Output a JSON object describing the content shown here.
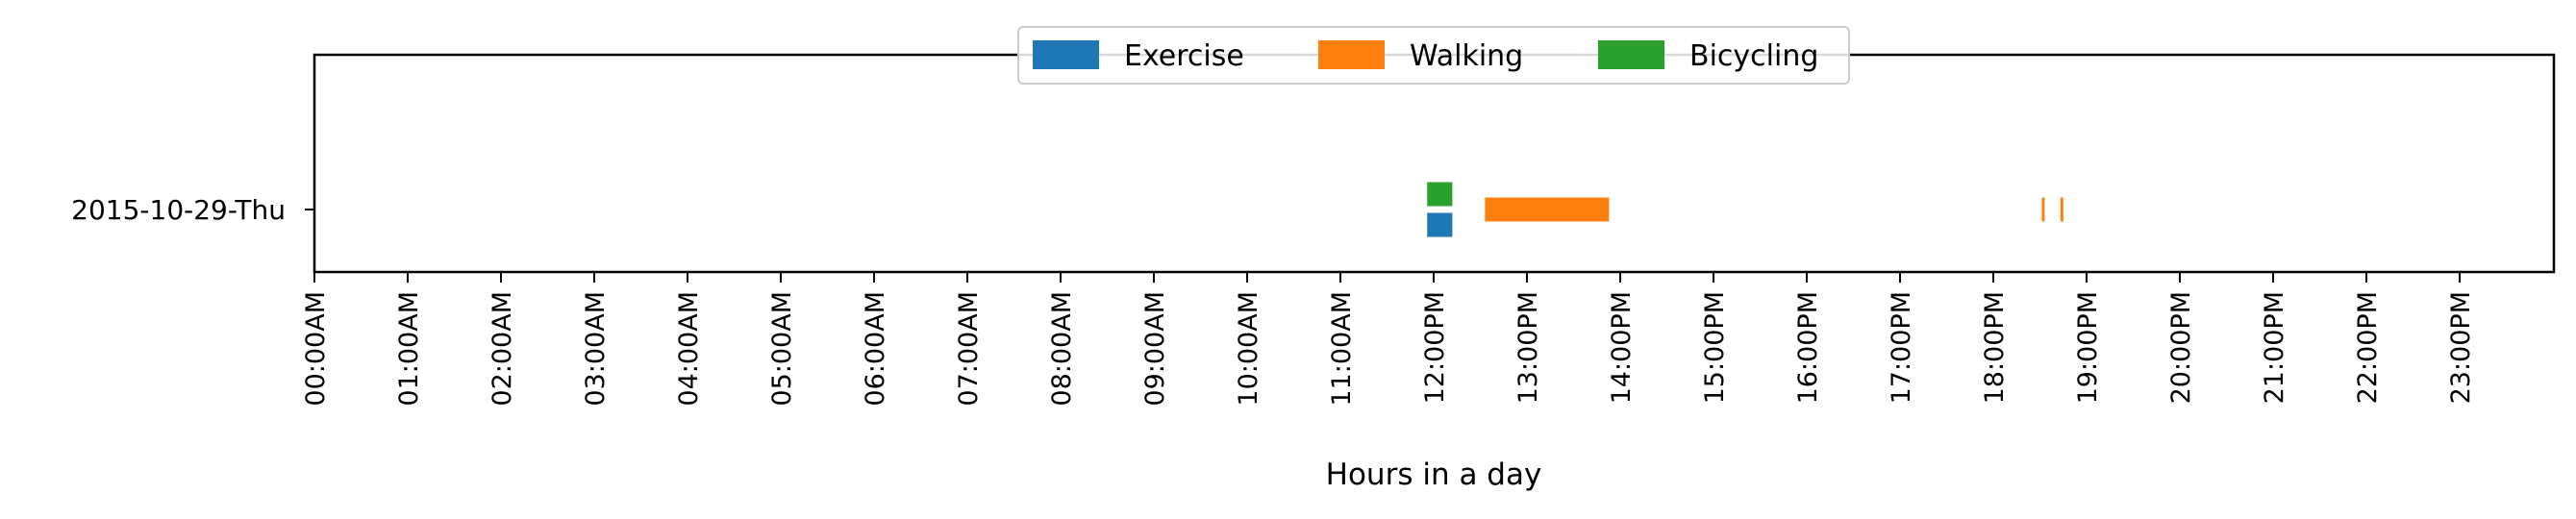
{
  "chart_data": {
    "type": "timeline",
    "xlabel": "Hours in a day",
    "xlim": [
      0,
      24
    ],
    "x_ticks": [
      "00:00AM",
      "01:00AM",
      "02:00AM",
      "03:00AM",
      "04:00AM",
      "05:00AM",
      "06:00AM",
      "07:00AM",
      "08:00AM",
      "09:00AM",
      "10:00AM",
      "11:00AM",
      "12:00PM",
      "13:00PM",
      "14:00PM",
      "15:00PM",
      "16:00PM",
      "17:00PM",
      "18:00PM",
      "19:00PM",
      "20:00PM",
      "21:00PM",
      "22:00PM",
      "23:00PM"
    ],
    "categories": [
      "2015-10-29-Thu"
    ],
    "legend_position": "top-center",
    "series": [
      {
        "name": "Exercise",
        "color": "#1f77b4",
        "intervals": [
          [
            11.93,
            12.2
          ]
        ]
      },
      {
        "name": "Walking",
        "color": "#ff7f0e",
        "intervals": [
          [
            12.55,
            13.88
          ],
          [
            18.52,
            18.55
          ],
          [
            18.72,
            18.75
          ]
        ]
      },
      {
        "name": "Bicycling",
        "color": "#2ca02c",
        "intervals": [
          [
            11.93,
            12.2
          ]
        ]
      }
    ]
  }
}
